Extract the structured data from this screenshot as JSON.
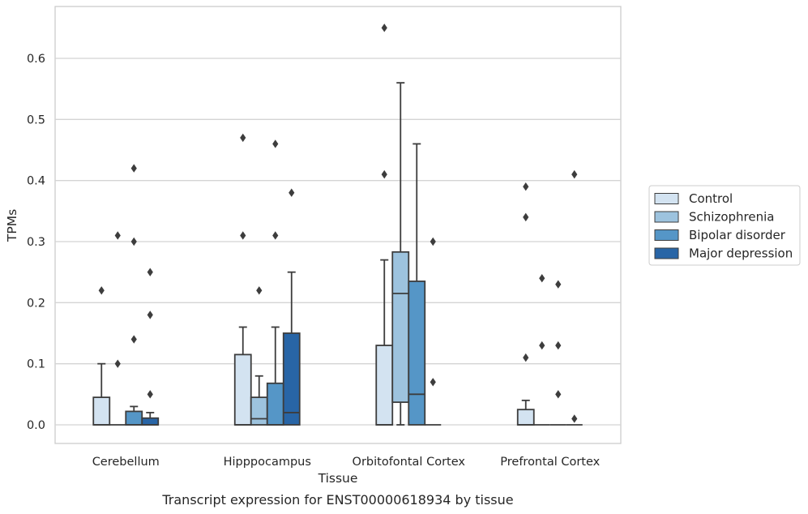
{
  "chart_data": {
    "type": "box",
    "caption": "Transcript expression for ENST00000618934 by tissue",
    "xlabel": "Tissue",
    "ylabel": "TPMs",
    "ylim": [
      -0.03,
      0.685
    ],
    "yticks": [
      0.0,
      0.1,
      0.2,
      0.3,
      0.4,
      0.5,
      0.6
    ],
    "grid": "horizontal",
    "legend_position": "right",
    "categories": [
      "Cerebellum",
      "Hipppocampus",
      "Orbitofontal Cortex",
      "Prefrontal Cortex"
    ],
    "series": [
      {
        "name": "Control",
        "color": "#d3e3f1",
        "boxes": [
          {
            "min": 0.0,
            "q1": 0.0,
            "median": 0.0,
            "q3": 0.045,
            "max": 0.1,
            "outliers": [
              0.22
            ]
          },
          {
            "min": 0.0,
            "q1": 0.0,
            "median": 0.0,
            "q3": 0.115,
            "max": 0.16,
            "outliers": [
              0.31,
              0.47
            ]
          },
          {
            "min": 0.0,
            "q1": 0.0,
            "median": 0.0,
            "q3": 0.13,
            "max": 0.27,
            "outliers": [
              0.41,
              0.65
            ]
          },
          {
            "min": 0.0,
            "q1": 0.0,
            "median": 0.0,
            "q3": 0.025,
            "max": 0.04,
            "outliers": [
              0.11,
              0.34,
              0.39
            ]
          }
        ]
      },
      {
        "name": "Schizophrenia",
        "color": "#9dc3de",
        "boxes": [
          {
            "min": 0.0,
            "q1": 0.0,
            "median": 0.0,
            "q3": 0.0,
            "max": 0.0,
            "outliers": [
              0.1,
              0.31
            ]
          },
          {
            "min": 0.0,
            "q1": 0.0,
            "median": 0.01,
            "q3": 0.045,
            "max": 0.08,
            "outliers": [
              0.22
            ]
          },
          {
            "min": 0.0,
            "q1": 0.037,
            "median": 0.215,
            "q3": 0.283,
            "max": 0.56,
            "outliers": []
          },
          {
            "min": 0.0,
            "q1": 0.0,
            "median": 0.0,
            "q3": 0.0,
            "max": 0.0,
            "outliers": [
              0.13,
              0.24
            ]
          }
        ]
      },
      {
        "name": "Bipolar disorder",
        "color": "#5596c7",
        "boxes": [
          {
            "min": 0.0,
            "q1": 0.0,
            "median": 0.0,
            "q3": 0.022,
            "max": 0.03,
            "outliers": [
              0.14,
              0.3,
              0.42
            ]
          },
          {
            "min": 0.0,
            "q1": 0.0,
            "median": 0.0,
            "q3": 0.068,
            "max": 0.16,
            "outliers": [
              0.31,
              0.46
            ]
          },
          {
            "min": 0.0,
            "q1": 0.0,
            "median": 0.05,
            "q3": 0.235,
            "max": 0.46,
            "outliers": []
          },
          {
            "min": 0.0,
            "q1": 0.0,
            "median": 0.0,
            "q3": 0.0,
            "max": 0.0,
            "outliers": [
              0.05,
              0.13,
              0.23
            ]
          }
        ]
      },
      {
        "name": "Major depression",
        "color": "#2865a6",
        "boxes": [
          {
            "min": 0.0,
            "q1": 0.0,
            "median": 0.0,
            "q3": 0.011,
            "max": 0.02,
            "outliers": [
              0.05,
              0.18,
              0.25
            ]
          },
          {
            "min": 0.0,
            "q1": 0.0,
            "median": 0.02,
            "q3": 0.15,
            "max": 0.25,
            "outliers": [
              0.38
            ]
          },
          {
            "min": 0.0,
            "q1": 0.0,
            "median": 0.0,
            "q3": 0.0,
            "max": 0.0,
            "outliers": [
              0.07,
              0.3
            ]
          },
          {
            "min": 0.0,
            "q1": 0.0,
            "median": 0.0,
            "q3": 0.0,
            "max": 0.0,
            "outliers": [
              0.01,
              0.41
            ]
          }
        ]
      }
    ]
  }
}
